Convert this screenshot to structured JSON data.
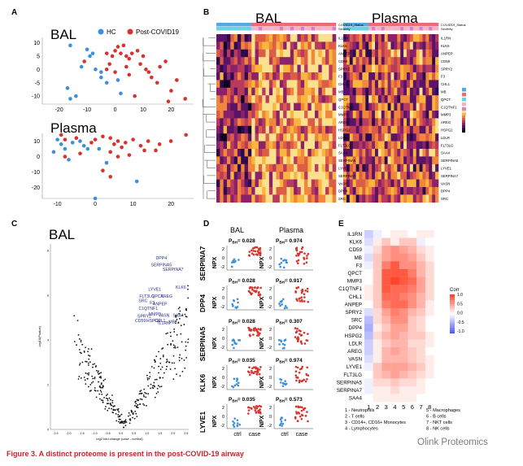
{
  "panel_letters": {
    "a": "A",
    "b": "B",
    "c": "C",
    "d": "D",
    "e": "E"
  },
  "panel_a": {
    "legend": [
      "HC",
      "Post-COVID19"
    ],
    "titles": [
      "BAL",
      "Plasma"
    ],
    "colors": {
      "hc": "#3d8fd9",
      "post": "#d8322c"
    },
    "bal_xticks": [
      "-20",
      "-10",
      "0",
      "10",
      "20"
    ],
    "bal_yticks": [
      "10",
      "5",
      "0",
      "-5",
      "-10"
    ],
    "plasma_xticks": [
      "-10",
      "0",
      "10",
      "20"
    ],
    "plasma_yticks": [
      "10",
      "0",
      "-10",
      "-20"
    ]
  },
  "panel_b": {
    "titles": [
      "BAL",
      "Plasma"
    ],
    "track_labels": [
      "COVID19_Status",
      "Severity"
    ],
    "row_labels": [
      "IL1RN",
      "KLK6",
      "ANPEP",
      "CD59",
      "SPRY2",
      "F3",
      "CHL1",
      "MB",
      "QPCT",
      "C1QTNF1",
      "MMP3",
      "AREG",
      "HSPG2",
      "LDLR",
      "FLT3LG",
      "SAA4",
      "SERPINA5",
      "LYVE1",
      "SERPINA7",
      "VASN",
      "DPP4",
      "SRC"
    ],
    "palette": [
      "#0d0221",
      "#2d0a4e",
      "#5a1366",
      "#8a226a",
      "#b83a5d",
      "#dc5c45",
      "#f1873a",
      "#f9b53e",
      "#fbe08d"
    ]
  },
  "panel_c": {
    "title": "BAL",
    "xlabel": "log2 fold change (case - control)",
    "ylabel": "-log10(Pvalue)",
    "xticks": [
      "-2.5",
      "-2.0",
      "-1.5",
      "-1.0",
      "-0.5",
      "0.0",
      "0.5",
      "1.0",
      "1.5",
      "2.0",
      "2.5"
    ],
    "yticks": [
      "0",
      "2",
      "4",
      "6",
      "8"
    ],
    "labels": [
      {
        "text": "DPP4",
        "x": 1.55,
        "y": 7.6
      },
      {
        "text": "SERPINA5",
        "x": 1.55,
        "y": 7.3
      },
      {
        "text": "SERPINA7",
        "x": 2.0,
        "y": 7.1
      },
      {
        "text": "KLK6",
        "x": 2.3,
        "y": 6.3
      },
      {
        "text": "LYVE1",
        "x": 1.3,
        "y": 6.2
      },
      {
        "text": "FLT3LG",
        "x": 1.0,
        "y": 5.9
      },
      {
        "text": "QPCT",
        "x": 1.4,
        "y": 5.9
      },
      {
        "text": "AREG",
        "x": 1.75,
        "y": 5.9
      },
      {
        "text": "SRC",
        "x": 0.85,
        "y": 5.7
      },
      {
        "text": "F3",
        "x": 1.2,
        "y": 5.6
      },
      {
        "text": "ANPEP",
        "x": 1.5,
        "y": 5.55
      },
      {
        "text": "C1QTNF1",
        "x": 1.05,
        "y": 5.35
      },
      {
        "text": "CD59",
        "x": 0.75,
        "y": 4.8
      },
      {
        "text": "MMP3",
        "x": 1.3,
        "y": 5.1
      },
      {
        "text": "SPRY2",
        "x": 0.9,
        "y": 5.0
      },
      {
        "text": "HSPG2",
        "x": 1.25,
        "y": 4.8
      },
      {
        "text": "CHL1",
        "x": 1.5,
        "y": 4.8
      },
      {
        "text": "IL1RN",
        "x": 1.65,
        "y": 4.7
      },
      {
        "text": "VASN",
        "x": 1.65,
        "y": 5.05
      },
      {
        "text": "SAA4",
        "x": 2.2,
        "y": 5.05
      },
      {
        "text": "MB",
        "x": 1.95,
        "y": 4.75
      }
    ]
  },
  "panel_d": {
    "col_titles": [
      "BAL",
      "Plasma"
    ],
    "proteins": [
      "SERPINA7",
      "DPP4",
      "SERPINA5",
      "KLK6",
      "LYVE1"
    ],
    "p_label": "P",
    "p_sub": "BH",
    "p_bal": [
      "= 0.028",
      "= 0.028",
      "= 0.028",
      "= 0.035",
      "= 0.035"
    ],
    "p_plasma": [
      "= 0.974",
      "= 0.917",
      "= 0.307",
      "= 0.974",
      "= 0.573"
    ],
    "ylabel": "NPX",
    "yticks": [
      "2",
      "0",
      "-2"
    ],
    "xticks": [
      "ctrl",
      "case"
    ]
  },
  "panel_e": {
    "rows": [
      "IL1RN",
      "KLK6",
      "CD59",
      "MB",
      "F3",
      "QPCT",
      "MMP3",
      "C1QTNF1",
      "CHL1",
      "ANPEP",
      "SPRY2",
      "SRC",
      "DPP4",
      "HSPG2",
      "LDLR",
      "AREG",
      "VASN",
      "LYVE1",
      "FLT3LG",
      "SERPINA5",
      "SERPINA7",
      "SAA4"
    ],
    "cols": [
      "1",
      "2",
      "3",
      "4",
      "5",
      "6",
      "7",
      "8"
    ],
    "values": [
      [
        -0.3,
        -0.1,
        0.0,
        0.1,
        0.1,
        0.0,
        0.1,
        0.1
      ],
      [
        -0.2,
        0.1,
        0.3,
        0.1,
        0.3,
        0.3,
        -0.1,
        0.0
      ],
      [
        -0.1,
        0.2,
        0.5,
        0.6,
        0.5,
        0.4,
        0.2,
        0.1
      ],
      [
        -0.2,
        0.3,
        0.5,
        0.6,
        0.6,
        0.5,
        0.3,
        0.1
      ],
      [
        -0.1,
        0.3,
        0.7,
        0.9,
        0.6,
        0.6,
        0.4,
        0.2
      ],
      [
        0.0,
        0.3,
        0.9,
        0.9,
        0.9,
        0.7,
        0.4,
        0.2
      ],
      [
        0.0,
        0.3,
        0.9,
        1.0,
        0.9,
        0.8,
        0.5,
        0.2
      ],
      [
        0.1,
        0.3,
        0.9,
        0.8,
        0.8,
        0.7,
        0.5,
        0.2
      ],
      [
        0.1,
        0.3,
        0.8,
        0.8,
        0.7,
        0.6,
        0.4,
        0.2
      ],
      [
        0.0,
        0.3,
        0.7,
        0.8,
        0.8,
        0.6,
        0.4,
        0.1
      ],
      [
        -0.2,
        0.2,
        0.5,
        0.7,
        0.6,
        0.4,
        0.3,
        0.1
      ],
      [
        -0.4,
        0.2,
        0.4,
        0.6,
        0.6,
        0.3,
        0.2,
        0.0
      ],
      [
        -0.5,
        0.1,
        0.3,
        0.5,
        0.5,
        0.3,
        0.2,
        0.0
      ],
      [
        -0.4,
        0.2,
        0.4,
        0.5,
        0.4,
        0.3,
        0.3,
        0.1
      ],
      [
        -0.3,
        0.1,
        0.3,
        0.4,
        0.4,
        0.2,
        0.2,
        0.1
      ],
      [
        -0.3,
        0.1,
        0.4,
        0.5,
        0.4,
        0.3,
        0.2,
        0.0
      ],
      [
        -0.2,
        0.1,
        0.4,
        0.4,
        0.4,
        0.3,
        0.2,
        0.1
      ],
      [
        -0.1,
        0.3,
        0.5,
        0.5,
        0.5,
        0.4,
        0.3,
        0.1
      ],
      [
        0.0,
        0.3,
        0.4,
        0.5,
        0.4,
        0.3,
        0.2,
        0.1
      ],
      [
        -0.1,
        0.2,
        0.2,
        0.3,
        0.2,
        0.2,
        0.1,
        0.0
      ],
      [
        -0.1,
        0.1,
        0.1,
        0.2,
        0.1,
        0.1,
        0.1,
        0.0
      ],
      [
        0.0,
        0.1,
        0.1,
        0.1,
        0.1,
        0.1,
        0.0,
        0.0
      ]
    ],
    "legend_title": "Corr",
    "legend_ticks": [
      "1.0",
      "0.5",
      "0.0",
      "-0.5",
      "-1.0"
    ],
    "key": [
      "1 - Neutrophils",
      "2 - T cells",
      "3 - CD14+, CD16+ Monocytes",
      "4 - Lymphocytes",
      "5 - Macrophages",
      "6 - B cells",
      "7 - NKT cells",
      "8 - NK cells"
    ],
    "watermark": "Olink Proteomics"
  },
  "caption": "Figure 3. A distinct proteome is present in the post-COVID-19 airway"
}
